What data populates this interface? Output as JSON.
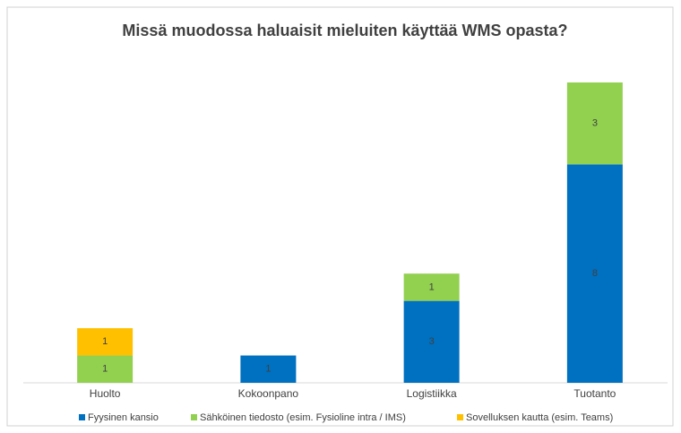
{
  "chart_data": {
    "type": "stacked_bar",
    "title": "Missä muodossa haluaisit mieluiten käyttää WMS opasta?",
    "categories": [
      "Huolto",
      "Kokoonpano",
      "Logistiikka",
      "Tuotanto"
    ],
    "series": [
      {
        "name": "Fyysinen kansio",
        "color": "#0070c0",
        "values": [
          0,
          1,
          3,
          8
        ]
      },
      {
        "name": "Sähköinen tiedosto (esim. Fysioline intra / IMS)",
        "color": "#92d050",
        "values": [
          1,
          0,
          1,
          3
        ]
      },
      {
        "name": "Sovelluksen kautta (esim. Teams)",
        "color": "#ffc000",
        "values": [
          1,
          0,
          0,
          0
        ]
      }
    ],
    "legend": "bottom"
  }
}
